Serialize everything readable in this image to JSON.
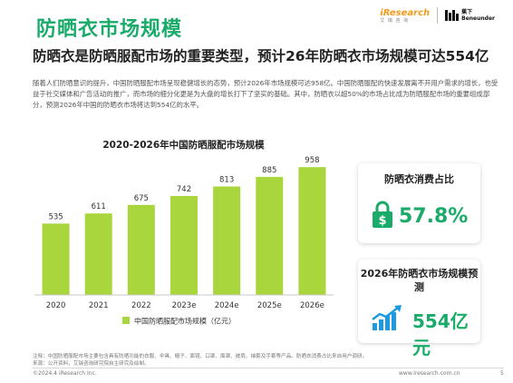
{
  "header": {
    "title": "防晒衣市场规模",
    "logo_iresearch": "iResearch",
    "logo_iresearch_sub": "艾 瑞 咨 询",
    "logo_beneunder_cn": "蕉下",
    "logo_beneunder_en": "Beneunder"
  },
  "subtitle": "防晒衣是防晒服配市场的重要类型，预计26年防晒衣市场规模可达554亿",
  "body_text": "随着人们防晒意识的提升，中国防晒服配市场呈现稳健增长的态势，预计2026年市场规模可达958亿。中国防晒服配的快速发展离不开用户需求的增长，也受益于社交媒体和广告活动的推广，而市场的细分化更是为大盘的增长打下了坚实的基础。其中，防晒衣以超50%的市场占比成为防晒服配市场的重要组成部分，预测2026年中国的防晒衣市场将达到554亿的水平。",
  "chart_data": {
    "type": "bar",
    "title": "2020-2026年中国防晒服配市场规模",
    "categories": [
      "2020",
      "2021",
      "2022",
      "2023e",
      "2024e",
      "2025e",
      "2026e"
    ],
    "series": [
      {
        "name": "中国防晒服配市场规模（亿元）",
        "values": [
          535,
          611,
          675,
          742,
          813,
          885,
          958
        ]
      }
    ],
    "xlabel": "",
    "ylabel": "",
    "ylim": [
      0,
      1000
    ],
    "grid": false,
    "legend_position": "bottom",
    "bar_color": "#a8d63c",
    "axis_color": "#c8c8c8"
  },
  "cards": {
    "share": {
      "title": "防晒衣消费占比",
      "value": "57.8%",
      "icon": "lock-dollar-icon"
    },
    "forecast": {
      "title": "2026年防晒衣市场规模预测",
      "value": "554亿元",
      "icon": "growth-chart-icon"
    }
  },
  "colors": {
    "accent": "#1aab6a",
    "bar": "#a8d63c",
    "icon_blue": "#1e9be0"
  },
  "notes": {
    "note": "注释：中国防晒服配市场主要包含具有防晒功能的衣服、伞具、帽子、面镜、口罩、面罩、披肩、袖套及手套等产品。防晒衣消费占比来自用户调研。",
    "source": "来源：公开资料，艾瑞咨询研究院自主研究及绘制。"
  },
  "footer": {
    "copyright": "©2024.4 iResearch Inc.",
    "url": "www.iresearch.com.cn",
    "page": "5"
  }
}
